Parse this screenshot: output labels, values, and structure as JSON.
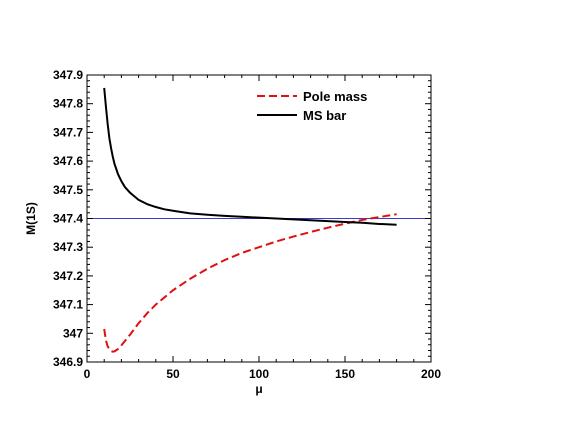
{
  "chart_data": {
    "type": "line",
    "title": "",
    "xlabel": "μ",
    "ylabel": "M(1S)",
    "xlim": [
      0,
      200
    ],
    "ylim": [
      346.9,
      347.9
    ],
    "x_ticks": [
      "0",
      "50",
      "100",
      "150",
      "200"
    ],
    "y_ticks": [
      "346.9",
      "347",
      "347.1",
      "347.2",
      "347.3",
      "347.4",
      "347.5",
      "347.6",
      "347.7",
      "347.8",
      "347.9"
    ],
    "grid": false,
    "legend_position": "top-right",
    "reference_line": {
      "y": 347.4,
      "color": "#3a3ad0"
    },
    "series": [
      {
        "name": "Pole mass",
        "style": "dashed",
        "color": "#e01010",
        "x": [
          10,
          11,
          12,
          13,
          14,
          15,
          16,
          18,
          20,
          25,
          30,
          35,
          40,
          45,
          50,
          60,
          70,
          80,
          90,
          100,
          110,
          120,
          130,
          140,
          150,
          160,
          170,
          180
        ],
        "y": [
          347.015,
          346.975,
          346.955,
          346.945,
          346.938,
          346.936,
          346.937,
          346.945,
          346.958,
          346.995,
          347.035,
          347.07,
          347.1,
          347.125,
          347.15,
          347.19,
          347.225,
          347.255,
          347.28,
          347.3,
          347.32,
          347.337,
          347.353,
          347.368,
          347.382,
          347.395,
          347.405,
          347.415
        ]
      },
      {
        "name": "MS bar",
        "style": "solid",
        "color": "#000000",
        "x": [
          10,
          11,
          12,
          13,
          14,
          15,
          16,
          18,
          20,
          22,
          25,
          28,
          30,
          35,
          40,
          45,
          50,
          60,
          70,
          80,
          90,
          100,
          110,
          120,
          130,
          140,
          150,
          160,
          170,
          180
        ],
        "y": [
          347.855,
          347.79,
          347.73,
          347.68,
          347.645,
          347.615,
          347.59,
          347.555,
          347.53,
          347.51,
          347.49,
          347.475,
          347.465,
          347.45,
          347.44,
          347.432,
          347.427,
          347.418,
          347.413,
          347.409,
          347.406,
          347.403,
          347.4,
          347.397,
          347.394,
          347.391,
          347.388,
          347.385,
          347.381,
          347.378
        ]
      }
    ]
  }
}
